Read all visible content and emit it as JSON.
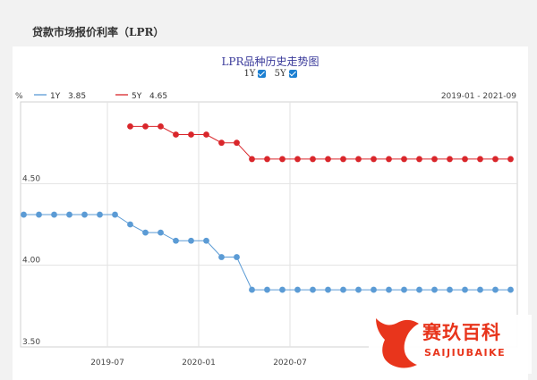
{
  "page": {
    "title": "贷款市场报价利率（LPR）"
  },
  "chart_data": {
    "type": "line",
    "title": "LPR品种历史走势图",
    "toggles": [
      {
        "label": "1Y",
        "checked": true
      },
      {
        "label": "5Y",
        "checked": true
      }
    ],
    "ylabel": "%",
    "range_label": "2019-01 - 2021-09",
    "ylim": [
      3.5,
      5.0
    ],
    "yticks": [
      "4.50",
      "4.00",
      "3.50"
    ],
    "xticks": [
      "2019-07",
      "2020-01",
      "2020-07"
    ],
    "categories": [
      "2019-01",
      "2019-02",
      "2019-03",
      "2019-04",
      "2019-05",
      "2019-06",
      "2019-07",
      "2019-08",
      "2019-09",
      "2019-10",
      "2019-11",
      "2019-12",
      "2020-01",
      "2020-02",
      "2020-03",
      "2020-04",
      "2020-05",
      "2020-06",
      "2020-07",
      "2020-08",
      "2020-09",
      "2020-10",
      "2020-11",
      "2020-12",
      "2021-01",
      "2021-02",
      "2021-03",
      "2021-04",
      "2021-05",
      "2021-06",
      "2021-07",
      "2021-08",
      "2021-09"
    ],
    "series": [
      {
        "name": "1Y",
        "legend_value": "3.85",
        "color": "#5b9bd5",
        "values": [
          4.31,
          4.31,
          4.31,
          4.31,
          4.31,
          4.31,
          4.31,
          4.25,
          4.2,
          4.2,
          4.15,
          4.15,
          4.15,
          4.05,
          4.05,
          3.85,
          3.85,
          3.85,
          3.85,
          3.85,
          3.85,
          3.85,
          3.85,
          3.85,
          3.85,
          3.85,
          3.85,
          3.85,
          3.85,
          3.85,
          3.85,
          3.85,
          3.85
        ]
      },
      {
        "name": "5Y",
        "legend_value": "4.65",
        "color": "#d9262b",
        "values": [
          null,
          null,
          null,
          null,
          null,
          null,
          null,
          4.85,
          4.85,
          4.85,
          4.8,
          4.8,
          4.8,
          4.75,
          4.75,
          4.65,
          4.65,
          4.65,
          4.65,
          4.65,
          4.65,
          4.65,
          4.65,
          4.65,
          4.65,
          4.65,
          4.65,
          4.65,
          4.65,
          4.65,
          4.65,
          4.65,
          4.65
        ]
      }
    ]
  },
  "watermark": {
    "text": "赛玖百科",
    "subtext": "SAIJIUBAIKE"
  }
}
